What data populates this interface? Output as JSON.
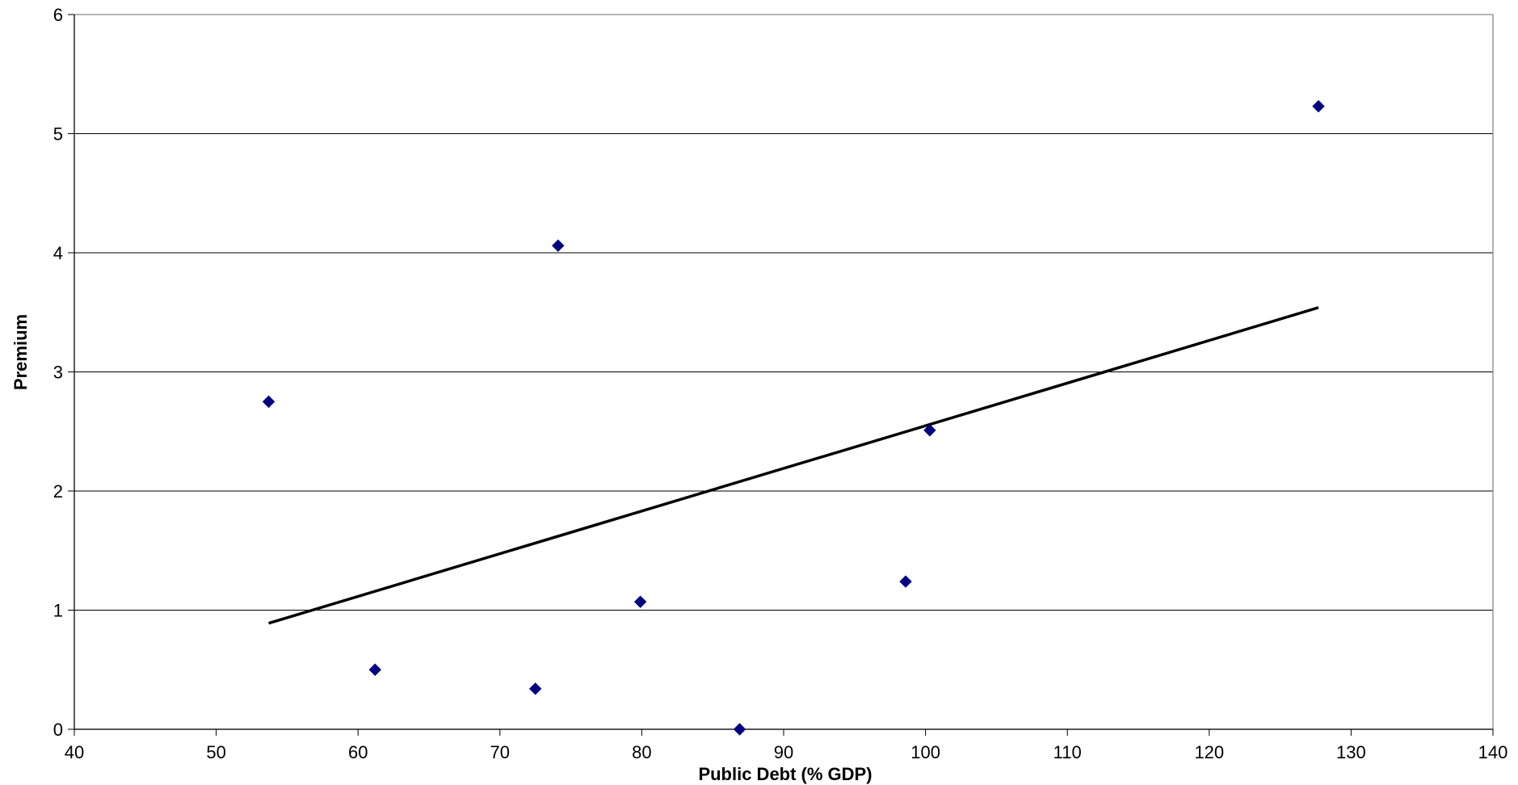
{
  "chart_data": {
    "type": "scatter",
    "title": "",
    "xlabel": "Public Debt (% GDP)",
    "ylabel": "Premium",
    "xlim": [
      40,
      140
    ],
    "ylim": [
      0,
      6
    ],
    "x_ticks": [
      "40",
      "50",
      "60",
      "70",
      "80",
      "90",
      "100",
      "110",
      "120",
      "130",
      "140"
    ],
    "y_ticks": [
      "0",
      "1",
      "2",
      "3",
      "4",
      "5",
      "6"
    ],
    "grid": "horizontal",
    "legend": "none",
    "points": [
      {
        "x": 53.7,
        "y": 2.75
      },
      {
        "x": 61.2,
        "y": 0.5
      },
      {
        "x": 72.5,
        "y": 0.34
      },
      {
        "x": 74.1,
        "y": 4.06
      },
      {
        "x": 79.9,
        "y": 1.07
      },
      {
        "x": 86.9,
        "y": 0.0
      },
      {
        "x": 98.6,
        "y": 1.24
      },
      {
        "x": 100.3,
        "y": 2.51
      },
      {
        "x": 127.7,
        "y": 5.23
      }
    ],
    "trendline": {
      "x": [
        53.7,
        127.7
      ],
      "y": [
        0.89,
        3.54
      ]
    },
    "colors": {
      "marker": "#000080",
      "trendline": "#000000",
      "grid": "#000000",
      "frame": "#808080"
    }
  }
}
